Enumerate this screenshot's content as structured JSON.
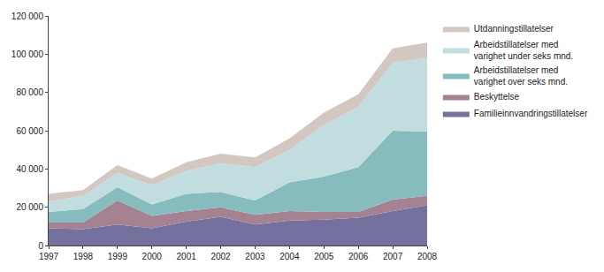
{
  "chart_data": {
    "type": "area",
    "stacked": true,
    "grid": false,
    "legend": "right",
    "x": [
      1997,
      1998,
      1999,
      2000,
      2001,
      2002,
      2003,
      2004,
      2005,
      2006,
      2007,
      2008
    ],
    "xlim": [
      1997,
      2008
    ],
    "xticks": [
      1997,
      1998,
      1999,
      2000,
      2001,
      2002,
      2003,
      2004,
      2005,
      2006,
      2007,
      2008
    ],
    "ylim": [
      0,
      120000
    ],
    "yticks": [
      0,
      {
        "value": 20000,
        "label": "20 000"
      },
      {
        "value": 40000,
        "label": "40 000"
      },
      {
        "value": 60000,
        "label": "60 000"
      },
      {
        "value": 80000,
        "label": "80 000"
      },
      {
        "value": 100000,
        "label": "100 000"
      },
      {
        "value": 120000,
        "label": "120 000"
      }
    ],
    "series": [
      {
        "name": "Familieinnvandringstillatelser",
        "color": "#75719f",
        "values": [
          9000,
          8500,
          11000,
          9000,
          12500,
          15000,
          11000,
          13000,
          13500,
          14500,
          18000,
          21000
        ]
      },
      {
        "name": "Beskyttelse",
        "color": "#a58292",
        "values": [
          3000,
          3500,
          12500,
          6500,
          5500,
          5000,
          5000,
          5000,
          4000,
          3000,
          6000,
          5000
        ]
      },
      {
        "name": "Arbeidstillatelser med varighet over seks mnd.",
        "color": "#86bcbe",
        "values": [
          5500,
          7000,
          7000,
          6000,
          9000,
          8000,
          7500,
          15000,
          18500,
          23500,
          36000,
          33500
        ]
      },
      {
        "name": "Arbeidstillatelser med varighet under seks mnd.",
        "color": "#c2dde0",
        "values": [
          5500,
          7000,
          7500,
          10000,
          12000,
          15000,
          17500,
          17000,
          27000,
          31500,
          35500,
          38500
        ]
      },
      {
        "name": "Utdanningstillatelser",
        "color": "#d3c7c1",
        "values": [
          4000,
          3000,
          4000,
          3500,
          4500,
          5000,
          5000,
          6000,
          6500,
          6500,
          7500,
          8000
        ]
      }
    ]
  }
}
